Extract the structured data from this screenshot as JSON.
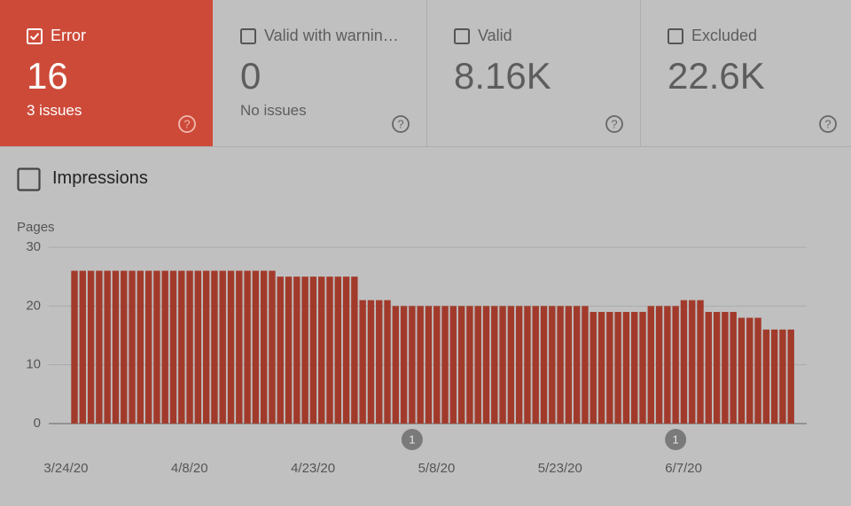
{
  "cards": [
    {
      "label": "Error",
      "value": "16",
      "subtitle": "3 issues"
    },
    {
      "label": "Valid with warnin…",
      "value": "0",
      "subtitle": "No issues"
    },
    {
      "label": "Valid",
      "value": "8.16K"
    },
    {
      "label": "Excluded",
      "value": "22.6K"
    }
  ],
  "toggle": "Impressions",
  "chart_data": {
    "type": "bar",
    "y_label": "Pages",
    "color": "#a23a2c",
    "grid": true,
    "ylim": [
      0,
      30
    ],
    "yticks": [
      0,
      10,
      20,
      30
    ],
    "categories": [
      "3/24/20",
      null,
      null,
      null,
      null,
      null,
      null,
      null,
      null,
      null,
      null,
      null,
      null,
      null,
      null,
      "4/8/20",
      null,
      null,
      null,
      null,
      null,
      null,
      null,
      null,
      null,
      null,
      null,
      null,
      null,
      null,
      "4/23/20",
      null,
      null,
      null,
      null,
      null,
      null,
      null,
      null,
      null,
      null,
      null,
      null,
      null,
      null,
      "5/8/20",
      null,
      null,
      null,
      null,
      null,
      null,
      null,
      null,
      null,
      null,
      null,
      null,
      null,
      null,
      "5/23/20",
      null,
      null,
      null,
      null,
      null,
      null,
      null,
      null,
      null,
      null,
      null,
      null,
      null,
      null,
      "6/7/20",
      null,
      null,
      null,
      null,
      null,
      null,
      null,
      null,
      null,
      null,
      null,
      null
    ],
    "values": [
      26,
      26,
      26,
      26,
      26,
      26,
      26,
      26,
      26,
      26,
      26,
      26,
      26,
      26,
      26,
      26,
      26,
      26,
      26,
      26,
      26,
      26,
      26,
      26,
      26,
      25,
      25,
      25,
      25,
      25,
      25,
      25,
      25,
      25,
      25,
      21,
      21,
      21,
      21,
      20,
      20,
      20,
      20,
      20,
      20,
      20,
      20,
      20,
      20,
      20,
      20,
      20,
      20,
      20,
      20,
      20,
      20,
      20,
      20,
      20,
      20,
      20,
      20,
      19,
      19,
      19,
      19,
      19,
      19,
      19,
      20,
      20,
      20,
      20,
      21,
      21,
      21,
      19,
      19,
      19,
      19,
      18,
      18,
      18,
      16,
      16,
      16,
      16
    ],
    "annotations": [
      null,
      null,
      null,
      null,
      null,
      null,
      null,
      null,
      null,
      null,
      null,
      null,
      null,
      null,
      null,
      null,
      null,
      null,
      null,
      null,
      null,
      null,
      null,
      null,
      null,
      null,
      null,
      null,
      null,
      null,
      null,
      null,
      null,
      null,
      null,
      null,
      null,
      null,
      null,
      null,
      null,
      "1",
      null,
      null,
      null,
      null,
      null,
      null,
      null,
      null,
      null,
      null,
      null,
      null,
      null,
      null,
      null,
      null,
      null,
      null,
      null,
      null,
      null,
      null,
      null,
      null,
      null,
      null,
      null,
      null,
      null,
      null,
      null,
      "1",
      null,
      null,
      null,
      null,
      null,
      null,
      null,
      null,
      null,
      null,
      null,
      null,
      null,
      null
    ]
  }
}
